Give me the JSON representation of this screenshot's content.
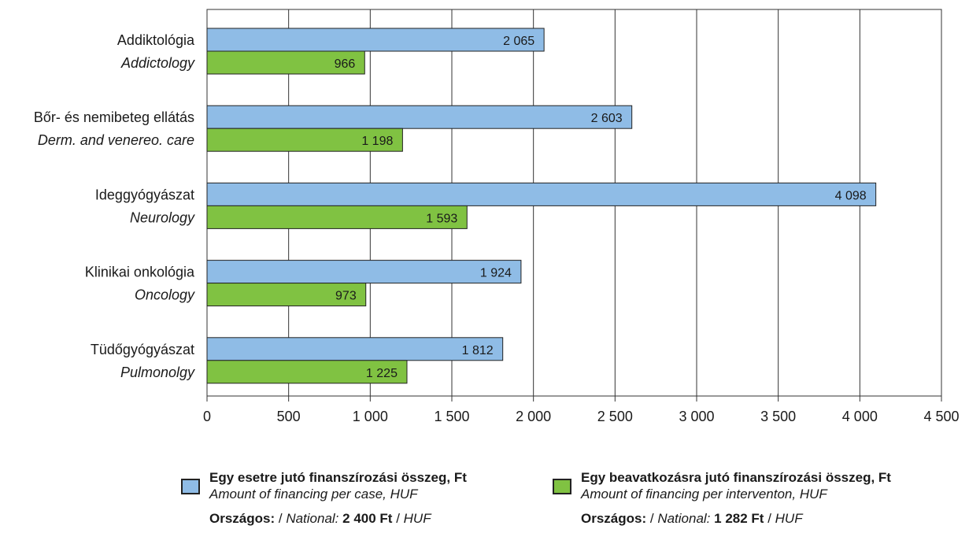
{
  "chart_data": {
    "type": "bar",
    "orientation": "horizontal",
    "categories": [
      {
        "hu": "Addiktológia",
        "en": "Addictology"
      },
      {
        "hu": "Bőr- és nemibeteg ellátás",
        "en": "Derm. and venereo. care"
      },
      {
        "hu": "Ideggyógyászat",
        "en": "Neurology"
      },
      {
        "hu": "Klinikai onkológia",
        "en": "Oncology"
      },
      {
        "hu": "Tüdőgyógyászat",
        "en": "Pulmonolgy"
      }
    ],
    "series": [
      {
        "name_hu": "Egy esetre jutó finanszírozási összeg, Ft",
        "name_en": "Amount of financing per case, HUF",
        "color": "#8fbce6",
        "values": [
          2065,
          2603,
          4098,
          1924,
          1812
        ],
        "labels": [
          "2 065",
          "2 603",
          "4 098",
          "1 924",
          "1 812"
        ]
      },
      {
        "name_hu": "Egy beavatkozásra jutó finanszírozási összeg, Ft",
        "name_en": "Amount of financing per interventon, HUF",
        "color": "#80c242",
        "values": [
          966,
          1198,
          1593,
          973,
          1225
        ],
        "labels": [
          "966",
          "1 198",
          "1 593",
          "973",
          "1 225"
        ]
      }
    ],
    "xlim": [
      0,
      4500
    ],
    "xticks": [
      0,
      500,
      1000,
      1500,
      2000,
      2500,
      3000,
      3500,
      4000,
      4500
    ],
    "xtick_labels": [
      "0",
      "500",
      "1 000",
      "1 500",
      "2 000",
      "2 500",
      "3 000",
      "3 500",
      "4 000",
      "4 500"
    ],
    "grid": "vertical",
    "legend_position": "bottom"
  },
  "national": [
    {
      "label_hu": "Országos:",
      "sep1": " / ",
      "label_en": "National:",
      "value": "2 400 Ft",
      "sep2": " / ",
      "unit_en": "HUF"
    },
    {
      "label_hu": "Országos:",
      "sep1": " / ",
      "label_en": "National:",
      "value": "1 282 Ft",
      "sep2": " / ",
      "unit_en": "HUF"
    }
  ]
}
